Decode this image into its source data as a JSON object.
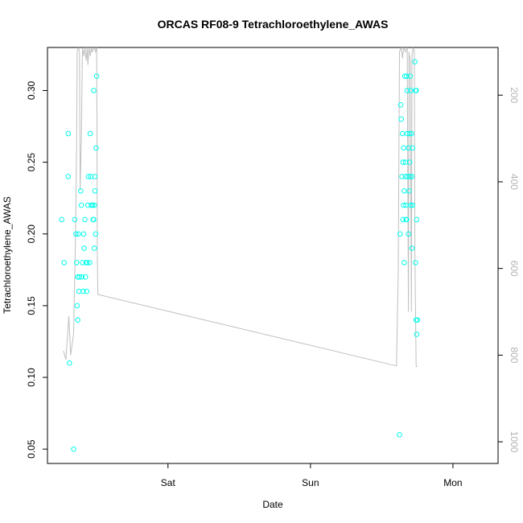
{
  "chart_data": {
    "type": "scatter",
    "title": "ORCAS RF08-9 Tetrachloroethylene_AWAS",
    "xlabel": "Date",
    "ylabel": "Tetrachloroethylene_AWAS",
    "x_axis_kind": "date",
    "x_ticks": [
      {
        "label": "Sat",
        "x": "Sat 00:00"
      },
      {
        "label": "Sun",
        "x": "Sun 00:00"
      },
      {
        "label": "Mon",
        "x": "Mon 00:00"
      }
    ],
    "x_range_hours": [
      -20.3,
      55.6
    ],
    "ylim": [
      0.04,
      0.33
    ],
    "y_ticks": [
      0.05,
      0.1,
      0.15,
      0.2,
      0.25,
      0.3
    ],
    "y_tick_labels": [
      "0.05",
      "0.10",
      "0.15",
      "0.20",
      "0.25",
      "0.30"
    ],
    "right_axis": {
      "ticks": [
        200,
        400,
        600,
        800,
        1000
      ],
      "tick_labels": [
        "200",
        "400",
        "600",
        "800",
        "1000"
      ],
      "reversed": true,
      "range": [
        90,
        1050
      ]
    },
    "grid": false,
    "legend": "none",
    "colors": {
      "points": "#00ffee",
      "altitude_line": "#bfbfbf"
    },
    "series": [
      {
        "marker": "open-circle",
        "axis": "left",
        "points": [
          [
            -17.9,
            0.21
          ],
          [
            -17.5,
            0.18
          ],
          [
            -16.8,
            0.27
          ],
          [
            -16.8,
            0.24
          ],
          [
            -16.6,
            0.11
          ],
          [
            -15.9,
            0.05
          ],
          [
            -15.7,
            0.21
          ],
          [
            -15.5,
            0.2
          ],
          [
            -15.4,
            0.18
          ],
          [
            -15.3,
            0.15
          ],
          [
            -15.2,
            0.14
          ],
          [
            -15.2,
            0.17
          ],
          [
            -15.1,
            0.2
          ],
          [
            -15.0,
            0.16
          ],
          [
            -14.9,
            0.17
          ],
          [
            -14.7,
            0.23
          ],
          [
            -14.6,
            0.22
          ],
          [
            -14.5,
            0.17
          ],
          [
            -14.4,
            0.18
          ],
          [
            -14.3,
            0.16
          ],
          [
            -14.2,
            0.2
          ],
          [
            -14.1,
            0.19
          ],
          [
            -14.0,
            0.21
          ],
          [
            -13.9,
            0.17
          ],
          [
            -13.8,
            0.18
          ],
          [
            -13.7,
            0.16
          ],
          [
            -13.6,
            0.18
          ],
          [
            -13.5,
            0.22
          ],
          [
            -13.4,
            0.24
          ],
          [
            -13.2,
            0.18
          ],
          [
            -13.1,
            0.27
          ],
          [
            -13.0,
            0.24
          ],
          [
            -12.9,
            0.22
          ],
          [
            -12.6,
            0.21
          ],
          [
            -12.5,
            0.3
          ],
          [
            -12.4,
            0.22
          ],
          [
            -12.3,
            0.23
          ],
          [
            -12.2,
            0.2
          ],
          [
            -12.1,
            0.26
          ],
          [
            -12.0,
            0.31
          ],
          [
            -12.4,
            0.19
          ],
          [
            -12.3,
            0.24
          ],
          [
            -12.5,
            0.21
          ],
          [
            -12.7,
            0.22
          ],
          [
            39.0,
            0.06
          ],
          [
            39.1,
            0.2
          ],
          [
            39.2,
            0.29
          ],
          [
            39.3,
            0.28
          ],
          [
            39.4,
            0.24
          ],
          [
            39.5,
            0.27
          ],
          [
            39.6,
            0.25
          ],
          [
            39.6,
            0.21
          ],
          [
            39.7,
            0.22
          ],
          [
            39.7,
            0.26
          ],
          [
            39.8,
            0.18
          ],
          [
            39.8,
            0.23
          ],
          [
            39.9,
            0.31
          ],
          [
            40.0,
            0.24
          ],
          [
            40.0,
            0.25
          ],
          [
            40.1,
            0.22
          ],
          [
            40.2,
            0.31
          ],
          [
            40.2,
            0.21
          ],
          [
            40.3,
            0.27
          ],
          [
            40.3,
            0.3
          ],
          [
            40.4,
            0.24
          ],
          [
            40.5,
            0.2
          ],
          [
            40.5,
            0.26
          ],
          [
            40.6,
            0.23
          ],
          [
            40.7,
            0.27
          ],
          [
            40.7,
            0.25
          ],
          [
            40.8,
            0.31
          ],
          [
            40.8,
            0.24
          ],
          [
            40.9,
            0.3
          ],
          [
            40.9,
            0.22
          ],
          [
            41.0,
            0.27
          ],
          [
            41.1,
            0.24
          ],
          [
            41.1,
            0.19
          ],
          [
            41.2,
            0.26
          ],
          [
            41.6,
            0.32
          ],
          [
            41.7,
            0.3
          ],
          [
            41.7,
            0.18
          ],
          [
            41.8,
            0.14
          ],
          [
            41.9,
            0.21
          ],
          [
            41.8,
            0.3
          ],
          [
            41.9,
            0.13
          ],
          [
            42.0,
            0.14
          ],
          [
            41.2,
            0.22
          ],
          [
            40.1,
            0.21
          ]
        ]
      },
      {
        "marker": "line",
        "axis": "right",
        "points": [
          [
            -17.6,
            790
          ],
          [
            -17.2,
            810
          ],
          [
            -16.7,
            710
          ],
          [
            -16.4,
            800
          ],
          [
            -15.9,
            750
          ],
          [
            -15.6,
            540
          ],
          [
            -15.4,
            320
          ],
          [
            -15.3,
            100
          ],
          [
            -15.1,
            90
          ],
          [
            -14.9,
            100
          ],
          [
            -14.8,
            420
          ],
          [
            -14.6,
            300
          ],
          [
            -14.4,
            90
          ],
          [
            -14.2,
            110
          ],
          [
            -14.0,
            90
          ],
          [
            -13.8,
            120
          ],
          [
            -13.6,
            90
          ],
          [
            -13.5,
            130
          ],
          [
            -13.3,
            90
          ],
          [
            -13.1,
            110
          ],
          [
            -12.9,
            90
          ],
          [
            -12.8,
            100
          ],
          [
            -12.6,
            95
          ],
          [
            -12.4,
            90
          ],
          [
            -12.2,
            100
          ],
          [
            -12.0,
            90
          ],
          [
            -11.9,
            580
          ],
          [
            -11.8,
            660
          ],
          [
            38.5,
            825
          ],
          [
            38.8,
            600
          ],
          [
            39.0,
            100
          ],
          [
            39.3,
            90
          ],
          [
            39.5,
            115
          ],
          [
            39.7,
            90
          ],
          [
            40.0,
            100
          ],
          [
            40.3,
            90
          ],
          [
            40.5,
            700
          ],
          [
            40.6,
            100
          ],
          [
            40.8,
            120
          ],
          [
            41.0,
            700
          ],
          [
            41.1,
            110
          ],
          [
            41.3,
            90
          ],
          [
            41.5,
            100
          ],
          [
            41.6,
            580
          ],
          [
            41.8,
            826
          ],
          [
            42.0,
            826
          ]
        ]
      }
    ]
  }
}
